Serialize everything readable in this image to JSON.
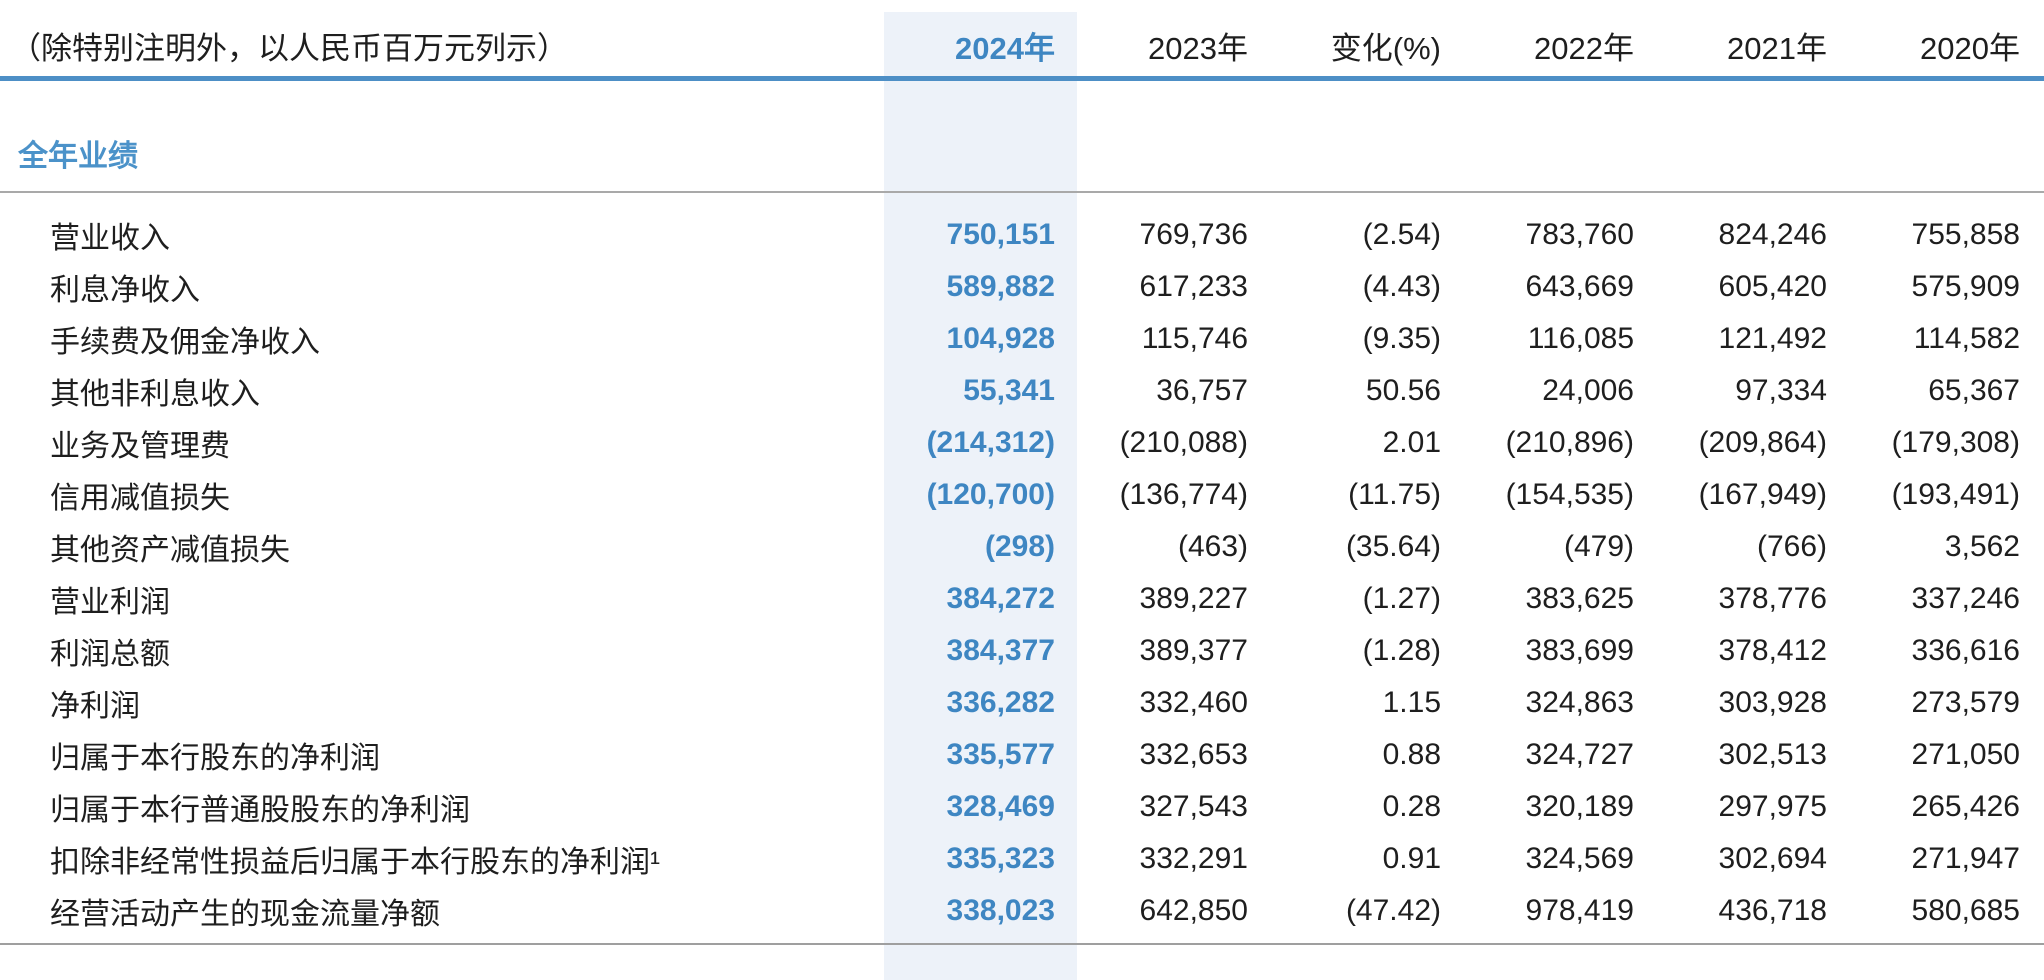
{
  "meta": {
    "unit_note": "（除特别注明外，以人民币百万元列示）"
  },
  "columns": [
    "2024年",
    "2023年",
    "变化(%)",
    "2022年",
    "2021年",
    "2020年"
  ],
  "section": {
    "title": "全年业绩"
  },
  "table": {
    "rows": [
      {
        "label": "营业收入",
        "values": [
          "750,151",
          "769,736",
          "(2.54)",
          "783,760",
          "824,246",
          "755,858"
        ]
      },
      {
        "label": "利息净收入",
        "values": [
          "589,882",
          "617,233",
          "(4.43)",
          "643,669",
          "605,420",
          "575,909"
        ]
      },
      {
        "label": "手续费及佣金净收入",
        "values": [
          "104,928",
          "115,746",
          "(9.35)",
          "116,085",
          "121,492",
          "114,582"
        ]
      },
      {
        "label": "其他非利息收入",
        "values": [
          "55,341",
          "36,757",
          "50.56",
          "24,006",
          "97,334",
          "65,367"
        ]
      },
      {
        "label": "业务及管理费",
        "values": [
          "(214,312)",
          "(210,088)",
          "2.01",
          "(210,896)",
          "(209,864)",
          "(179,308)"
        ]
      },
      {
        "label": "信用减值损失",
        "values": [
          "(120,700)",
          "(136,774)",
          "(11.75)",
          "(154,535)",
          "(167,949)",
          "(193,491)"
        ]
      },
      {
        "label": "其他资产减值损失",
        "values": [
          "(298)",
          "(463)",
          "(35.64)",
          "(479)",
          "(766)",
          "3,562"
        ]
      },
      {
        "label": "营业利润",
        "values": [
          "384,272",
          "389,227",
          "(1.27)",
          "383,625",
          "378,776",
          "337,246"
        ]
      },
      {
        "label": "利润总额",
        "values": [
          "384,377",
          "389,377",
          "(1.28)",
          "383,699",
          "378,412",
          "336,616"
        ]
      },
      {
        "label": "净利润",
        "values": [
          "336,282",
          "332,460",
          "1.15",
          "324,863",
          "303,928",
          "273,579"
        ]
      },
      {
        "label": "归属于本行股东的净利润",
        "values": [
          "335,577",
          "332,653",
          "0.88",
          "324,727",
          "302,513",
          "271,050"
        ]
      },
      {
        "label": "归属于本行普通股股东的净利润",
        "values": [
          "328,469",
          "327,543",
          "0.28",
          "320,189",
          "297,975",
          "265,426"
        ]
      },
      {
        "label": "扣除非经常性损益后归属于本行股东的净利润¹",
        "values": [
          "335,323",
          "332,291",
          "0.91",
          "324,569",
          "302,694",
          "271,947"
        ]
      },
      {
        "label": "经营活动产生的现金流量净额",
        "values": [
          "338,023",
          "642,850",
          "(47.42)",
          "978,419",
          "436,718",
          "580,685"
        ]
      }
    ]
  },
  "colors": {
    "accent_blue": "#3e86c2",
    "section_blue": "#4b92c9",
    "rule_blue": "#4d8fc6",
    "band_bg": "#edf2f9",
    "divider_gray": "#a9a9a9",
    "text_black": "#1e1e1e"
  }
}
